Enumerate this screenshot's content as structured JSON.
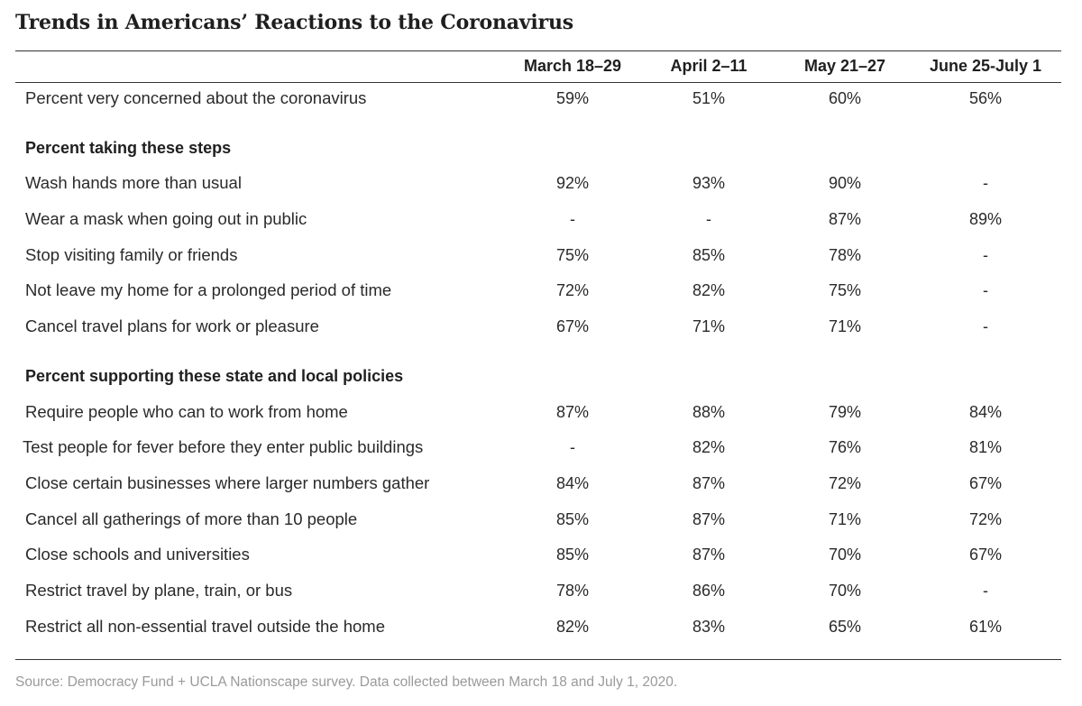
{
  "title": "Trends in Americans’ Reactions to the Coronavirus",
  "columns": [
    "March 18–29",
    "April 2–11",
    "May 21–27",
    "June 25-July 1"
  ],
  "rows": [
    {
      "type": "data",
      "label": "Percent very concerned about the coronavirus",
      "values": [
        "59%",
        "51%",
        "60%",
        "56%"
      ]
    },
    {
      "type": "section",
      "label": "Percent taking these steps"
    },
    {
      "type": "data",
      "label": "Wash hands more than usual",
      "values": [
        "92%",
        "93%",
        "90%",
        "-"
      ]
    },
    {
      "type": "data",
      "label": "Wear a mask when going out in public",
      "values": [
        "-",
        "-",
        "87%",
        "89%"
      ]
    },
    {
      "type": "data",
      "label": "Stop visiting family or friends",
      "values": [
        "75%",
        "85%",
        "78%",
        "-"
      ]
    },
    {
      "type": "data",
      "label": "Not leave my home for a prolonged period of time",
      "values": [
        "72%",
        "82%",
        "75%",
        "-"
      ]
    },
    {
      "type": "data",
      "label": "Cancel travel plans for work or pleasure",
      "values": [
        "67%",
        "71%",
        "71%",
        "-"
      ]
    },
    {
      "type": "section",
      "label": "Percent supporting these state and local policies"
    },
    {
      "type": "data",
      "label": "Require people who can to work from home",
      "values": [
        "87%",
        "88%",
        "79%",
        "84%"
      ]
    },
    {
      "type": "data",
      "label": "Test people for fever before they enter public buildings",
      "values": [
        "-",
        "82%",
        "76%",
        "81%"
      ]
    },
    {
      "type": "data",
      "label": "Close certain businesses where larger numbers gather",
      "values": [
        "84%",
        "87%",
        "72%",
        "67%"
      ]
    },
    {
      "type": "data",
      "label": "Cancel all gatherings of more than 10 people",
      "values": [
        "85%",
        "87%",
        "71%",
        "72%"
      ]
    },
    {
      "type": "data",
      "label": "Close schools and universities",
      "values": [
        "85%",
        "87%",
        "70%",
        "67%"
      ]
    },
    {
      "type": "data",
      "label": "Restrict travel by plane, train, or bus",
      "values": [
        "78%",
        "86%",
        "70%",
        "-"
      ]
    },
    {
      "type": "data",
      "label": "Restrict all non-essential travel outside the home",
      "values": [
        "82%",
        "83%",
        "65%",
        "61%"
      ]
    }
  ],
  "source": "Source: Democracy Fund + UCLA Nationscape survey. Data collected between March 18 and July 1, 2020."
}
